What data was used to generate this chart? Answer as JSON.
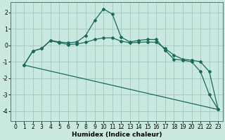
{
  "title": "",
  "xlabel": "Humidex (Indice chaleur)",
  "ylabel": "",
  "background_color": "#c8e8e0",
  "grid_color": "#a0c8c0",
  "line_color": "#1a6a5a",
  "xlim": [
    -0.5,
    23.5
  ],
  "ylim": [
    -4.6,
    2.6
  ],
  "yticks": [
    -4,
    -3,
    -2,
    -1,
    0,
    1,
    2
  ],
  "xticks": [
    0,
    1,
    2,
    3,
    4,
    5,
    6,
    7,
    8,
    9,
    10,
    11,
    12,
    13,
    14,
    15,
    16,
    17,
    18,
    19,
    20,
    21,
    22,
    23
  ],
  "line1_x": [
    1,
    2,
    3,
    4,
    5,
    6,
    7,
    8,
    9,
    10,
    11,
    12,
    13,
    14,
    15,
    16,
    17,
    18,
    19,
    20,
    21,
    22,
    23
  ],
  "line1_y": [
    -1.2,
    -0.35,
    -0.2,
    0.3,
    0.2,
    0.15,
    0.2,
    0.6,
    1.5,
    2.2,
    1.9,
    0.5,
    0.2,
    0.3,
    0.35,
    0.35,
    -0.3,
    -0.85,
    -0.9,
    -1.0,
    -1.6,
    -3.0,
    -3.9
  ],
  "line2_x": [
    1,
    2,
    3,
    4,
    5,
    6,
    7,
    8,
    9,
    10,
    11,
    12,
    13,
    14,
    15,
    16,
    17,
    18,
    19,
    20,
    21,
    22,
    23
  ],
  "line2_y": [
    -1.2,
    -0.35,
    -0.2,
    0.28,
    0.15,
    0.05,
    0.08,
    0.18,
    0.35,
    0.45,
    0.45,
    0.25,
    0.15,
    0.18,
    0.2,
    0.18,
    -0.2,
    -0.6,
    -0.85,
    -0.9,
    -1.0,
    -1.6,
    -3.9
  ],
  "line3_x": [
    1,
    23
  ],
  "line3_y": [
    -1.2,
    -3.9
  ],
  "marker": "D",
  "markersize": 2.0,
  "linewidth": 0.9,
  "tick_fontsize": 5.5,
  "xlabel_fontsize": 6.5
}
